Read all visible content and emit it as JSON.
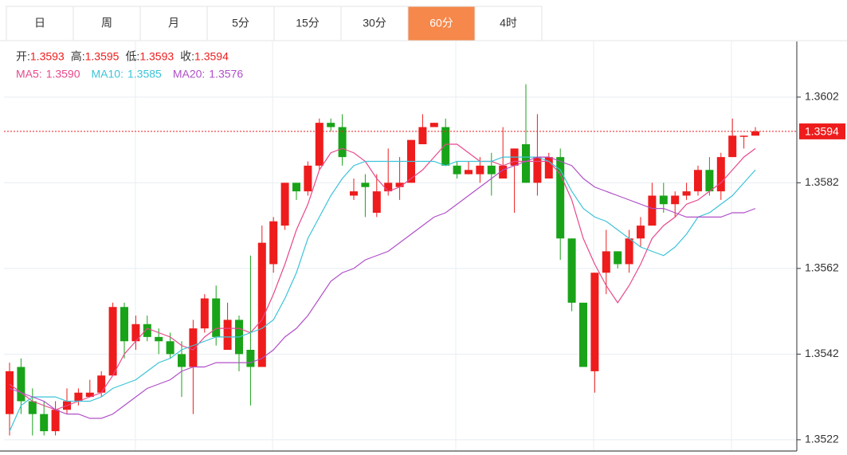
{
  "tabs": [
    "日",
    "周",
    "月",
    "5分",
    "15分",
    "30分",
    "60分",
    "4时"
  ],
  "active_tab": 6,
  "chart_data": {
    "type": "candlestick",
    "ohlc_labels": [
      "开:",
      "高:",
      "低:",
      "收:"
    ],
    "ohlc_values": [
      1.3593,
      1.3595,
      1.3593,
      1.3594
    ],
    "up_color": "#ee1c1c",
    "down_color": "#19a319",
    "open": [
      1.3528,
      1.3539,
      1.3531,
      1.3528,
      1.3524,
      1.3529,
      1.3531,
      1.3532,
      1.3533,
      1.3537,
      1.3553,
      1.3545,
      1.3549,
      1.3546,
      1.3545,
      1.3542,
      1.3539,
      1.3548,
      1.3555,
      1.3543,
      1.355,
      1.3543,
      1.3539,
      1.3563,
      1.3572,
      1.3582,
      1.358,
      1.3586,
      1.3596,
      1.3595,
      1.3579,
      1.3582,
      1.3575,
      1.358,
      1.3581,
      1.3582,
      1.3591,
      1.3595,
      1.3595,
      1.3586,
      1.3584,
      1.3584,
      1.3586,
      1.3583,
      1.3586,
      1.3591,
      1.3582,
      1.3583,
      1.3588,
      1.3569,
      1.3554,
      1.3538,
      1.3561,
      1.3566,
      1.3563,
      1.3569,
      1.3572,
      1.3579,
      1.3577,
      1.3579,
      1.358,
      1.3585,
      1.358,
      1.3588,
      1.3593,
      1.3593
    ],
    "high": [
      1.354,
      1.3541,
      1.3534,
      1.3531,
      1.3531,
      1.3534,
      1.3534,
      1.3536,
      1.3538,
      1.3554,
      1.3554,
      1.3551,
      1.3551,
      1.3548,
      1.3547,
      1.3545,
      1.355,
      1.3556,
      1.3558,
      1.3554,
      1.3551,
      1.3565,
      1.3572,
      1.3574,
      1.3582,
      1.3582,
      1.3587,
      1.3597,
      1.3597,
      1.3598,
      1.3583,
      1.3584,
      1.3584,
      1.359,
      1.3588,
      1.3592,
      1.3598,
      1.3596,
      1.3597,
      1.3587,
      1.3587,
      1.3588,
      1.3589,
      1.3595,
      1.359,
      1.3605,
      1.3598,
      1.3589,
      1.359,
      1.3569,
      1.3554,
      1.3561,
      1.3571,
      1.3566,
      1.3571,
      1.3574,
      1.3582,
      1.3582,
      1.358,
      1.3582,
      1.3586,
      1.3588,
      1.3589,
      1.3597,
      1.3593,
      1.3595
    ],
    "low": [
      1.3523,
      1.3528,
      1.3523,
      1.3523,
      1.3523,
      1.3528,
      1.353,
      1.3532,
      1.3532,
      1.3537,
      1.3541,
      1.3543,
      1.3545,
      1.3542,
      1.3541,
      1.3532,
      1.3528,
      1.3547,
      1.3544,
      1.3543,
      1.3538,
      1.353,
      1.3539,
      1.3561,
      1.3571,
      1.3578,
      1.3579,
      1.3585,
      1.3594,
      1.3586,
      1.3578,
      1.3574,
      1.3574,
      1.3579,
      1.3578,
      1.3582,
      1.3591,
      1.3595,
      1.3586,
      1.3583,
      1.3584,
      1.3582,
      1.3579,
      1.3583,
      1.3575,
      1.3582,
      1.3579,
      1.3583,
      1.3564,
      1.3552,
      1.3539,
      1.3533,
      1.3556,
      1.3562,
      1.3561,
      1.3567,
      1.3572,
      1.3575,
      1.3574,
      1.3578,
      1.3579,
      1.3579,
      1.3578,
      1.3588,
      1.359,
      1.3593
    ],
    "close": [
      1.3538,
      1.3531,
      1.3528,
      1.3524,
      1.3529,
      1.3531,
      1.3533,
      1.3533,
      1.3537,
      1.3553,
      1.3545,
      1.3549,
      1.3546,
      1.3545,
      1.3542,
      1.3539,
      1.3548,
      1.3555,
      1.3546,
      1.355,
      1.3542,
      1.3539,
      1.3568,
      1.3573,
      1.3582,
      1.358,
      1.3586,
      1.3596,
      1.3595,
      1.3588,
      1.358,
      1.3581,
      1.358,
      1.3582,
      1.3582,
      1.3592,
      1.3595,
      1.3596,
      1.3586,
      1.3584,
      1.3585,
      1.3586,
      1.3584,
      1.3586,
      1.359,
      1.3582,
      1.3588,
      1.3588,
      1.3569,
      1.3554,
      1.3539,
      1.3561,
      1.3566,
      1.3563,
      1.3569,
      1.3572,
      1.3579,
      1.3577,
      1.3579,
      1.358,
      1.3585,
      1.358,
      1.3588,
      1.3593,
      1.3593,
      1.3594
    ],
    "series": [
      {
        "name": "MA5:",
        "value_label": "1.3590",
        "color": "#e8488c",
        "values": [
          1.3535,
          1.3533,
          1.3531,
          1.353,
          1.3529,
          1.353,
          1.3531,
          1.3532,
          1.3533,
          1.3537,
          1.3542,
          1.3545,
          1.3548,
          1.3547,
          1.3546,
          1.3544,
          1.3543,
          1.3546,
          1.3548,
          1.3548,
          1.3548,
          1.3547,
          1.355,
          1.3556,
          1.3563,
          1.3571,
          1.3577,
          1.3585,
          1.3589,
          1.359,
          1.3589,
          1.3587,
          1.3583,
          1.358,
          1.3581,
          1.3583,
          1.3585,
          1.3588,
          1.3591,
          1.3591,
          1.3589,
          1.3587,
          1.3587,
          1.3586,
          1.3587,
          1.3587,
          1.3587,
          1.3587,
          1.3584,
          1.3578,
          1.3569,
          1.3563,
          1.3558,
          1.3554,
          1.3558,
          1.3563,
          1.3569,
          1.3572,
          1.3574,
          1.3577,
          1.3578,
          1.358,
          1.3582,
          1.3585,
          1.3588,
          1.359
        ]
      },
      {
        "name": "MA10:",
        "value_label": "1.3585",
        "color": "#3cc3d8",
        "values": [
          1.3524,
          1.353,
          1.3532,
          1.3532,
          1.3532,
          1.3531,
          1.3531,
          1.3531,
          1.3532,
          1.3534,
          1.3535,
          1.3536,
          1.3538,
          1.354,
          1.3541,
          1.3543,
          1.3544,
          1.3545,
          1.3546,
          1.3546,
          1.3546,
          1.3547,
          1.3548,
          1.355,
          1.3555,
          1.3561,
          1.3569,
          1.3574,
          1.3579,
          1.3583,
          1.3586,
          1.3587,
          1.3587,
          1.3587,
          1.3587,
          1.3587,
          1.3587,
          1.3587,
          1.3586,
          1.3587,
          1.3587,
          1.3587,
          1.3587,
          1.3588,
          1.3588,
          1.3588,
          1.3588,
          1.3587,
          1.3585,
          1.358,
          1.3576,
          1.3574,
          1.3573,
          1.3571,
          1.3569,
          1.3567,
          1.3566,
          1.3565,
          1.3567,
          1.357,
          1.3574,
          1.3575,
          1.3577,
          1.3579,
          1.3582,
          1.3585
        ]
      },
      {
        "name": "MA20:",
        "value_label": "1.3576",
        "color": "#b04fc8",
        "values": [
          1.3534,
          1.3533,
          1.3532,
          1.3531,
          1.3529,
          1.3528,
          1.3528,
          1.3527,
          1.3527,
          1.3528,
          1.353,
          1.3532,
          1.3534,
          1.3535,
          1.3536,
          1.3538,
          1.3539,
          1.3539,
          1.354,
          1.354,
          1.354,
          1.354,
          1.3541,
          1.3543,
          1.3546,
          1.3548,
          1.3551,
          1.3555,
          1.3559,
          1.3561,
          1.3562,
          1.3564,
          1.3565,
          1.3566,
          1.3568,
          1.357,
          1.3572,
          1.3574,
          1.3575,
          1.3577,
          1.3579,
          1.3581,
          1.3583,
          1.3585,
          1.3586,
          1.3587,
          1.3588,
          1.3588,
          1.3587,
          1.3586,
          1.3583,
          1.3581,
          1.358,
          1.3579,
          1.3578,
          1.3577,
          1.3576,
          1.3576,
          1.3575,
          1.3574,
          1.3574,
          1.3574,
          1.3574,
          1.3575,
          1.3575,
          1.3576
        ]
      }
    ],
    "current_price": 1.3594,
    "ylim": [
      1.3519,
      1.3615
    ],
    "yticks": [
      1.3602,
      1.3582,
      1.3562,
      1.3542,
      1.3522
    ],
    "grid": true
  }
}
